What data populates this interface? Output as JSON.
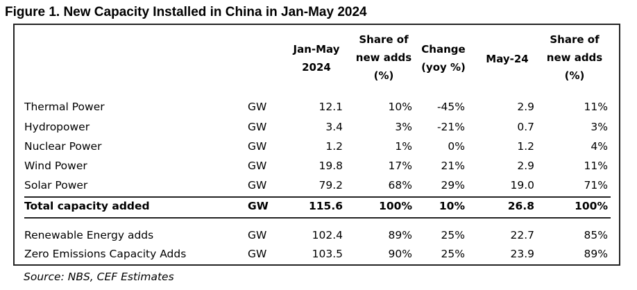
{
  "title": "Figure 1. New Capacity Installed in China in Jan-May 2024",
  "headers": {
    "jan_may": [
      "Jan-May",
      "2024"
    ],
    "share1": [
      "Share of",
      "new adds",
      "(%)"
    ],
    "change": [
      "Change",
      "(yoy %)"
    ],
    "may": [
      "May-24"
    ],
    "share2": [
      "Share of",
      "new adds",
      "(%)"
    ]
  },
  "rows": [
    {
      "label": "Thermal Power",
      "unit": "GW",
      "jan_may": "12.1",
      "share": "10%",
      "change": "-45%",
      "may": "2.9",
      "may_share": "11%"
    },
    {
      "label": "Hydropower",
      "unit": "GW",
      "jan_may": "3.4",
      "share": "3%",
      "change": "-21%",
      "may": "0.7",
      "may_share": "3%"
    },
    {
      "label": "Nuclear Power",
      "unit": "GW",
      "jan_may": "1.2",
      "share": "1%",
      "change": "0%",
      "may": "1.2",
      "may_share": "4%"
    },
    {
      "label": "Wind Power",
      "unit": "GW",
      "jan_may": "19.8",
      "share": "17%",
      "change": "21%",
      "may": "2.9",
      "may_share": "11%"
    },
    {
      "label": "Solar Power",
      "unit": "GW",
      "jan_may": "79.2",
      "share": "68%",
      "change": "29%",
      "may": "19.0",
      "may_share": "71%"
    }
  ],
  "total": {
    "label": "Total capacity added",
    "unit": "GW",
    "jan_may": "115.6",
    "share": "100%",
    "change": "10%",
    "may": "26.8",
    "may_share": "100%"
  },
  "extra_rows": [
    {
      "label": "Renewable Energy adds",
      "unit": "GW",
      "jan_may": "102.4",
      "share": "89%",
      "change": "25%",
      "may": "22.7",
      "may_share": "85%"
    },
    {
      "label": "Zero Emissions Capacity Adds",
      "unit": "GW",
      "jan_may": "103.5",
      "share": "90%",
      "change": "25%",
      "may": "23.9",
      "may_share": "89%"
    }
  ],
  "source": "Source: NBS, CEF Estimates"
}
